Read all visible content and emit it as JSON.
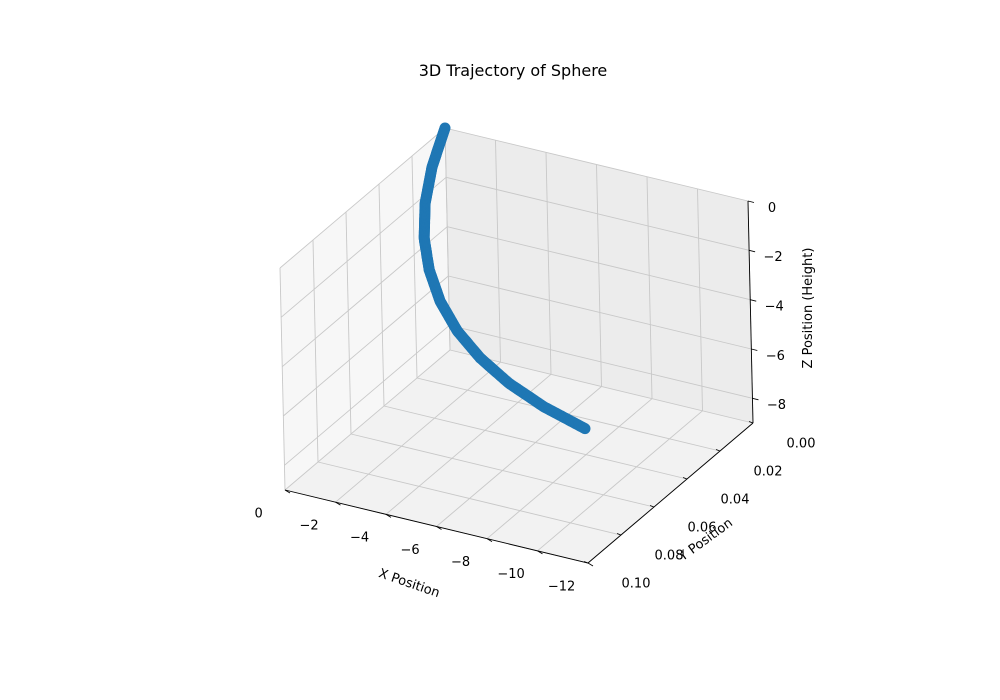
{
  "chart_data": {
    "type": "scatter",
    "title": "3D Trajectory of Sphere",
    "xlabel": "X Position",
    "ylabel": "Y Position",
    "zlabel": "Z Position (Height)",
    "xlim": [
      0.0,
      0.1
    ],
    "ylim": [
      -12,
      0
    ],
    "zlim": [
      -9,
      0
    ],
    "xticks": [
      "0.00",
      "0.02",
      "0.04",
      "0.06",
      "0.08",
      "0.10"
    ],
    "yticks": [
      "0",
      "−2",
      "−4",
      "−6",
      "−8",
      "−10",
      "−12"
    ],
    "zticks": [
      "0",
      "−2",
      "−4",
      "−6",
      "−8"
    ],
    "grid": true,
    "series": [
      {
        "color": "#1f77b4",
        "marker": "circle",
        "x": [
          0.0,
          0.01,
          0.02,
          0.03,
          0.04,
          0.05,
          0.06,
          0.07,
          0.08,
          0.09,
          0.1
        ],
        "y": [
          0.0,
          -0.12,
          -0.48,
          -1.08,
          -1.92,
          -3.0,
          -4.32,
          -5.88,
          -7.68,
          -9.72,
          -12.0
        ],
        "z": [
          0.0,
          -0.98,
          -1.8,
          -2.5,
          -3.0,
          -3.45,
          -3.75,
          -3.9,
          -3.92,
          -3.8,
          -3.55
        ]
      }
    ]
  }
}
